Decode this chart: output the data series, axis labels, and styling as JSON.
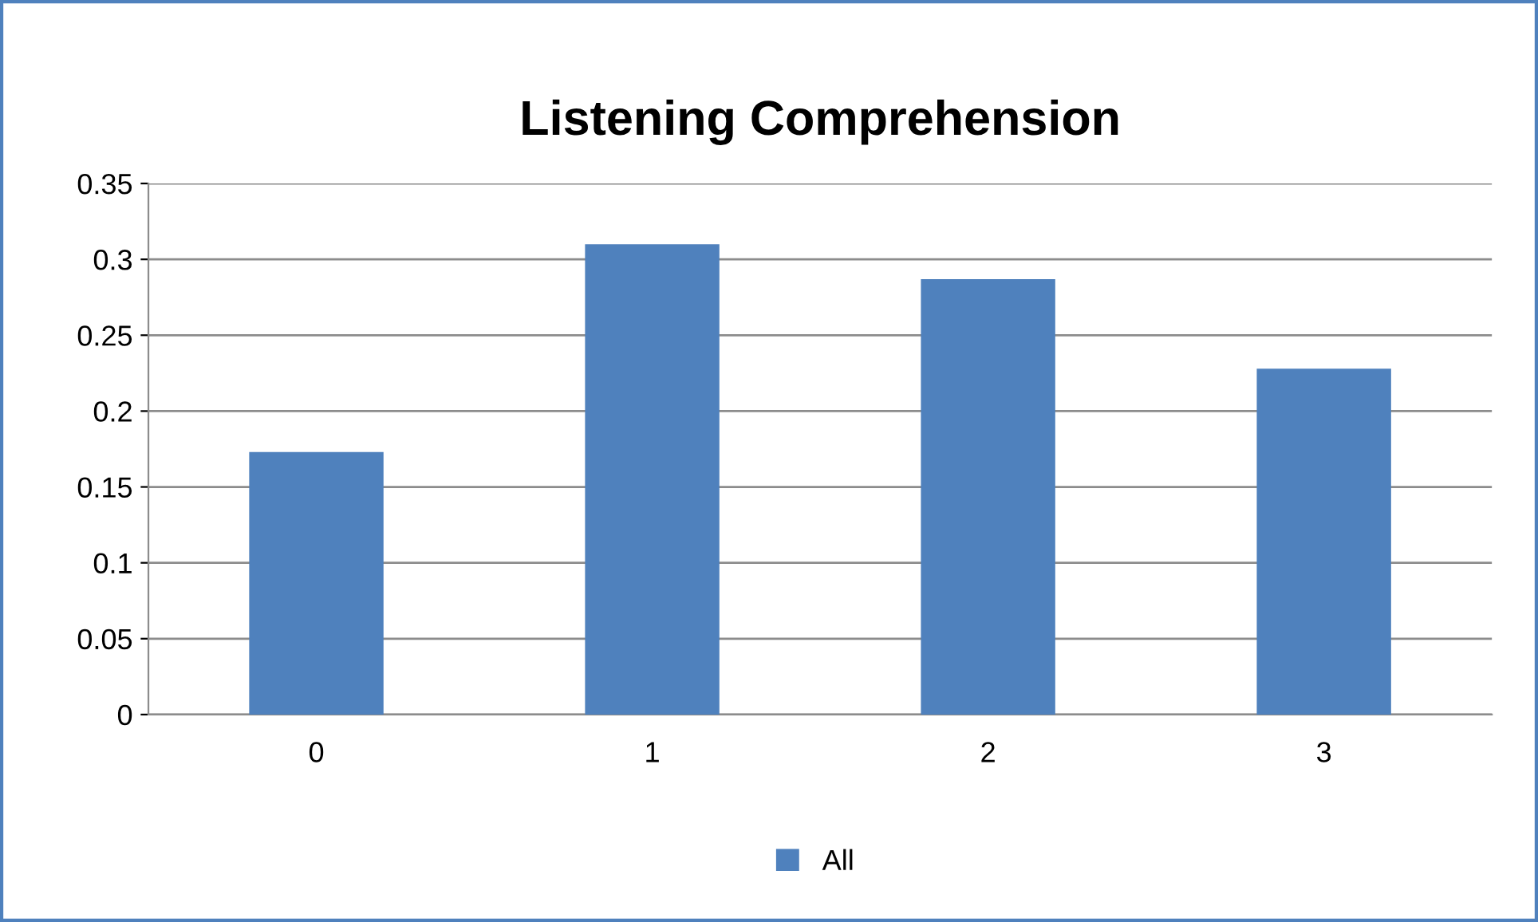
{
  "chart_data": {
    "type": "bar",
    "title": "Listening Comprehension",
    "categories": [
      "0",
      "1",
      "2",
      "3"
    ],
    "series": [
      {
        "name": "All",
        "color": "#4f81bd",
        "values": [
          0.173,
          0.31,
          0.287,
          0.228
        ]
      }
    ],
    "ylim": [
      0,
      0.35
    ],
    "yticks": [
      0,
      0.05,
      0.1,
      0.15,
      0.2,
      0.25,
      0.3,
      0.35
    ],
    "grid": "y",
    "legend": "bottom"
  }
}
